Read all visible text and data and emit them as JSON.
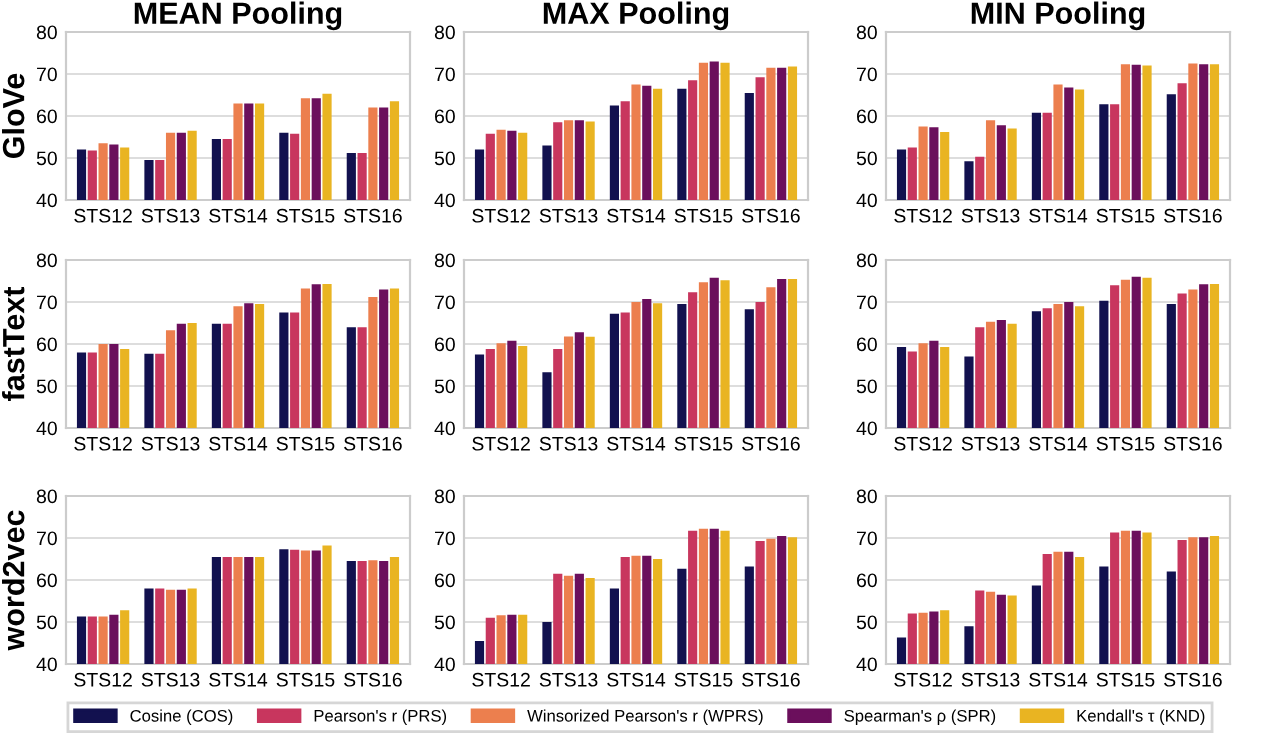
{
  "chart_data": [
    {
      "type": "bar",
      "title": "MEAN Pooling",
      "ylabel": "GloVe",
      "legend": "bottom",
      "categories": [
        "STS12",
        "STS13",
        "STS14",
        "STS15",
        "STS16"
      ],
      "ylim": [
        40,
        80
      ],
      "yticks": [
        40,
        50,
        60,
        70,
        80
      ],
      "grid": "y",
      "series": [
        {
          "name": "Cosine (COS)",
          "color": "#12114f",
          "values": [
            52,
            49.5,
            54.5,
            56,
            51.2
          ]
        },
        {
          "name": "Pearson's r (PRS)",
          "color": "#c8365e",
          "values": [
            51.8,
            49.5,
            54.5,
            55.8,
            51.2
          ]
        },
        {
          "name": "Winsorized Pearson's r (WPRS)",
          "color": "#ec7f4e",
          "values": [
            53.5,
            56,
            63,
            64.2,
            62
          ]
        },
        {
          "name": "Spearman's ρ (SPR)",
          "color": "#6b0f5c",
          "values": [
            53.2,
            56,
            63,
            64.2,
            62
          ]
        },
        {
          "name": "Kendall's τ (KND)",
          "color": "#e9b422",
          "values": [
            52.5,
            56.5,
            63,
            65.3,
            63.5
          ]
        }
      ]
    },
    {
      "type": "bar",
      "title": "MAX Pooling",
      "categories": [
        "STS12",
        "STS13",
        "STS14",
        "STS15",
        "STS16"
      ],
      "ylim": [
        40,
        80
      ],
      "yticks": [
        40,
        50,
        60,
        70,
        80
      ],
      "grid": "y",
      "series": [
        {
          "color": "#12114f",
          "values": [
            52,
            53,
            62.5,
            66.5,
            65.5
          ]
        },
        {
          "color": "#c8365e",
          "values": [
            55.8,
            58.5,
            63.5,
            68.5,
            69.2
          ]
        },
        {
          "color": "#ec7f4e",
          "values": [
            56.7,
            59,
            67.5,
            72.7,
            71.5
          ]
        },
        {
          "color": "#6b0f5c",
          "values": [
            56.5,
            59,
            67.2,
            73,
            71.5
          ]
        },
        {
          "color": "#e9b422",
          "values": [
            56,
            58.7,
            66.5,
            72.7,
            71.8
          ]
        }
      ]
    },
    {
      "type": "bar",
      "title": "MIN Pooling",
      "categories": [
        "STS12",
        "STS13",
        "STS14",
        "STS15",
        "STS16"
      ],
      "ylim": [
        40,
        80
      ],
      "yticks": [
        40,
        50,
        60,
        70,
        80
      ],
      "grid": "y",
      "series": [
        {
          "color": "#12114f",
          "values": [
            52,
            49.2,
            60.8,
            62.8,
            65.2
          ]
        },
        {
          "color": "#c8365e",
          "values": [
            52.5,
            50.3,
            60.8,
            62.8,
            67.8
          ]
        },
        {
          "color": "#ec7f4e",
          "values": [
            57.5,
            59,
            67.5,
            72.3,
            72.5
          ]
        },
        {
          "color": "#6b0f5c",
          "values": [
            57.3,
            57.8,
            66.8,
            72.2,
            72.3
          ]
        },
        {
          "color": "#e9b422",
          "values": [
            56.2,
            57,
            66.3,
            72,
            72.3
          ]
        }
      ]
    },
    {
      "type": "bar",
      "ylabel": "fastText",
      "categories": [
        "STS12",
        "STS13",
        "STS14",
        "STS15",
        "STS16"
      ],
      "ylim": [
        40,
        80
      ],
      "yticks": [
        40,
        50,
        60,
        70,
        80
      ],
      "grid": "y",
      "series": [
        {
          "color": "#12114f",
          "values": [
            58,
            57.7,
            64.8,
            67.5,
            64
          ]
        },
        {
          "color": "#c8365e",
          "values": [
            58,
            57.7,
            64.8,
            67.5,
            64
          ]
        },
        {
          "color": "#ec7f4e",
          "values": [
            60,
            63.3,
            69,
            73.2,
            71.2
          ]
        },
        {
          "color": "#6b0f5c",
          "values": [
            60,
            64.8,
            69.7,
            74.2,
            73
          ]
        },
        {
          "color": "#e9b422",
          "values": [
            58.8,
            65,
            69.5,
            74.3,
            73.2
          ]
        }
      ]
    },
    {
      "type": "bar",
      "categories": [
        "STS12",
        "STS13",
        "STS14",
        "STS15",
        "STS16"
      ],
      "ylim": [
        40,
        80
      ],
      "yticks": [
        40,
        50,
        60,
        70,
        80
      ],
      "grid": "y",
      "series": [
        {
          "color": "#12114f",
          "values": [
            57.5,
            53.3,
            67.2,
            69.5,
            68.3
          ]
        },
        {
          "color": "#c8365e",
          "values": [
            58.8,
            58.8,
            67.5,
            72.3,
            70
          ]
        },
        {
          "color": "#ec7f4e",
          "values": [
            60.2,
            61.8,
            70,
            74.7,
            73.5
          ]
        },
        {
          "color": "#6b0f5c",
          "values": [
            60.8,
            62.8,
            70.7,
            75.8,
            75.5
          ]
        },
        {
          "color": "#e9b422",
          "values": [
            59.5,
            61.7,
            69.7,
            75.2,
            75.5
          ]
        }
      ]
    },
    {
      "type": "bar",
      "categories": [
        "STS12",
        "STS13",
        "STS14",
        "STS15",
        "STS16"
      ],
      "ylim": [
        40,
        80
      ],
      "yticks": [
        40,
        50,
        60,
        70,
        80
      ],
      "grid": "y",
      "series": [
        {
          "color": "#12114f",
          "values": [
            59.3,
            57,
            67.8,
            70.3,
            69.5
          ]
        },
        {
          "color": "#c8365e",
          "values": [
            58.2,
            64,
            68.5,
            74,
            72
          ]
        },
        {
          "color": "#ec7f4e",
          "values": [
            60.2,
            65.3,
            69.5,
            75.3,
            73
          ]
        },
        {
          "color": "#6b0f5c",
          "values": [
            60.8,
            65.7,
            70,
            76,
            74.2
          ]
        },
        {
          "color": "#e9b422",
          "values": [
            59.3,
            64.8,
            69,
            75.8,
            74.3
          ]
        }
      ]
    },
    {
      "type": "bar",
      "ylabel": "word2vec",
      "categories": [
        "STS12",
        "STS13",
        "STS14",
        "STS15",
        "STS16"
      ],
      "ylim": [
        40,
        80
      ],
      "yticks": [
        40,
        50,
        60,
        70,
        80
      ],
      "grid": "y",
      "series": [
        {
          "color": "#12114f",
          "values": [
            51.3,
            58,
            65.5,
            67.3,
            64.5
          ]
        },
        {
          "color": "#c8365e",
          "values": [
            51.3,
            58,
            65.5,
            67.2,
            64.5
          ]
        },
        {
          "color": "#ec7f4e",
          "values": [
            51.3,
            57.7,
            65.5,
            67,
            64.7
          ]
        },
        {
          "color": "#6b0f5c",
          "values": [
            51.7,
            57.7,
            65.5,
            67,
            64.5
          ]
        },
        {
          "color": "#e9b422",
          "values": [
            52.8,
            58,
            65.5,
            68.2,
            65.5
          ]
        }
      ]
    },
    {
      "type": "bar",
      "categories": [
        "STS12",
        "STS13",
        "STS14",
        "STS15",
        "STS16"
      ],
      "ylim": [
        40,
        80
      ],
      "yticks": [
        40,
        50,
        60,
        70,
        80
      ],
      "grid": "y",
      "series": [
        {
          "color": "#12114f",
          "values": [
            45.5,
            50,
            58,
            62.7,
            63.2
          ]
        },
        {
          "color": "#c8365e",
          "values": [
            51,
            61.5,
            65.5,
            71.7,
            69.3
          ]
        },
        {
          "color": "#ec7f4e",
          "values": [
            51.6,
            61,
            65.8,
            72.2,
            69.8
          ]
        },
        {
          "color": "#6b0f5c",
          "values": [
            51.7,
            61.5,
            65.8,
            72.2,
            70.5
          ]
        },
        {
          "color": "#e9b422",
          "values": [
            51.7,
            60.5,
            65,
            71.7,
            70.2
          ]
        }
      ]
    },
    {
      "type": "bar",
      "categories": [
        "STS12",
        "STS13",
        "STS14",
        "STS15",
        "STS16"
      ],
      "ylim": [
        40,
        80
      ],
      "yticks": [
        40,
        50,
        60,
        70,
        80
      ],
      "grid": "y",
      "series": [
        {
          "color": "#12114f",
          "values": [
            46.3,
            49,
            58.7,
            63.2,
            62
          ]
        },
        {
          "color": "#c8365e",
          "values": [
            52,
            57.5,
            66.2,
            71.3,
            69.5
          ]
        },
        {
          "color": "#ec7f4e",
          "values": [
            52.2,
            57.2,
            66.7,
            71.7,
            70.2
          ]
        },
        {
          "color": "#6b0f5c",
          "values": [
            52.5,
            56.5,
            66.7,
            71.7,
            70.2
          ]
        },
        {
          "color": "#e9b422",
          "values": [
            52.8,
            56.3,
            65.5,
            71.3,
            70.5
          ]
        }
      ]
    }
  ]
}
